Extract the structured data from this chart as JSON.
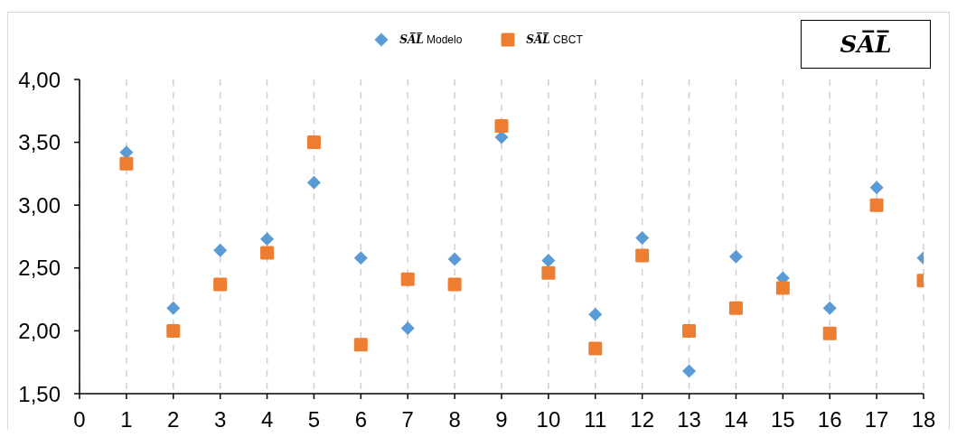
{
  "chart_data": {
    "type": "scatter",
    "title": "SA̅L̅",
    "x": [
      1,
      2,
      3,
      4,
      5,
      6,
      7,
      8,
      9,
      10,
      11,
      12,
      13,
      14,
      15,
      16,
      17,
      18
    ],
    "xlim": [
      0,
      18
    ],
    "xticks": [
      0,
      1,
      2,
      3,
      4,
      5,
      6,
      7,
      8,
      9,
      10,
      11,
      12,
      13,
      14,
      15,
      16,
      17,
      18
    ],
    "ylim": [
      1.5,
      4
    ],
    "yticks": [
      {
        "value": 1.5,
        "label": "1,50"
      },
      {
        "value": 2,
        "label": "2,00"
      },
      {
        "value": 2.5,
        "label": "2,50"
      },
      {
        "value": 3,
        "label": "3,00"
      },
      {
        "value": 3.5,
        "label": "3,50"
      },
      {
        "value": 4,
        "label": "4,00"
      }
    ],
    "grid": "x",
    "legend": "top",
    "series": [
      {
        "name": "SA̅L̅ Modelo",
        "color": "#5b9bd5",
        "marker": "diamond",
        "values": [
          3.42,
          2.18,
          2.64,
          2.73,
          3.18,
          2.58,
          2.02,
          2.57,
          3.54,
          2.56,
          2.13,
          2.74,
          1.68,
          2.59,
          2.42,
          2.18,
          3.14,
          2.58
        ]
      },
      {
        "name": "SA̅L̅ CBCT",
        "color": "#ed7d31",
        "marker": "square",
        "values": [
          3.33,
          2.0,
          2.37,
          2.62,
          3.5,
          1.89,
          2.41,
          2.37,
          3.63,
          2.46,
          1.86,
          2.6,
          2.0,
          2.18,
          2.34,
          1.98,
          3.0,
          2.4
        ]
      }
    ]
  }
}
